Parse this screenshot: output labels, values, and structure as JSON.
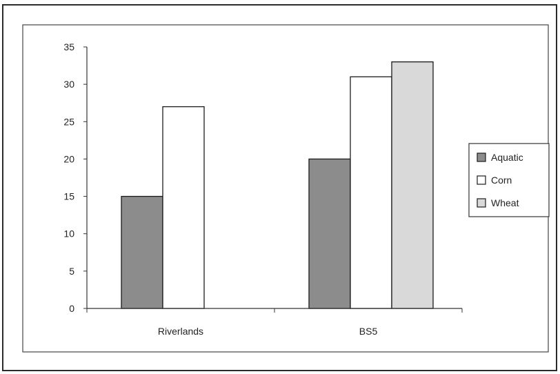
{
  "chart_data": {
    "type": "bar",
    "categories": [
      "Riverlands",
      "BS5"
    ],
    "series": [
      {
        "name": "Aquatic",
        "values": [
          15,
          20
        ],
        "color": "#8c8c8c"
      },
      {
        "name": "Corn",
        "values": [
          27,
          31
        ],
        "color": "#ffffff"
      },
      {
        "name": "Wheat",
        "values": [
          null,
          33
        ],
        "color": "#d9d9d9"
      }
    ],
    "ylim": [
      0,
      35
    ],
    "yticks": [
      0,
      5,
      10,
      15,
      20,
      25,
      30,
      35
    ],
    "title": "",
    "xlabel": "",
    "ylabel": "",
    "grid": false,
    "legend_position": "right"
  }
}
